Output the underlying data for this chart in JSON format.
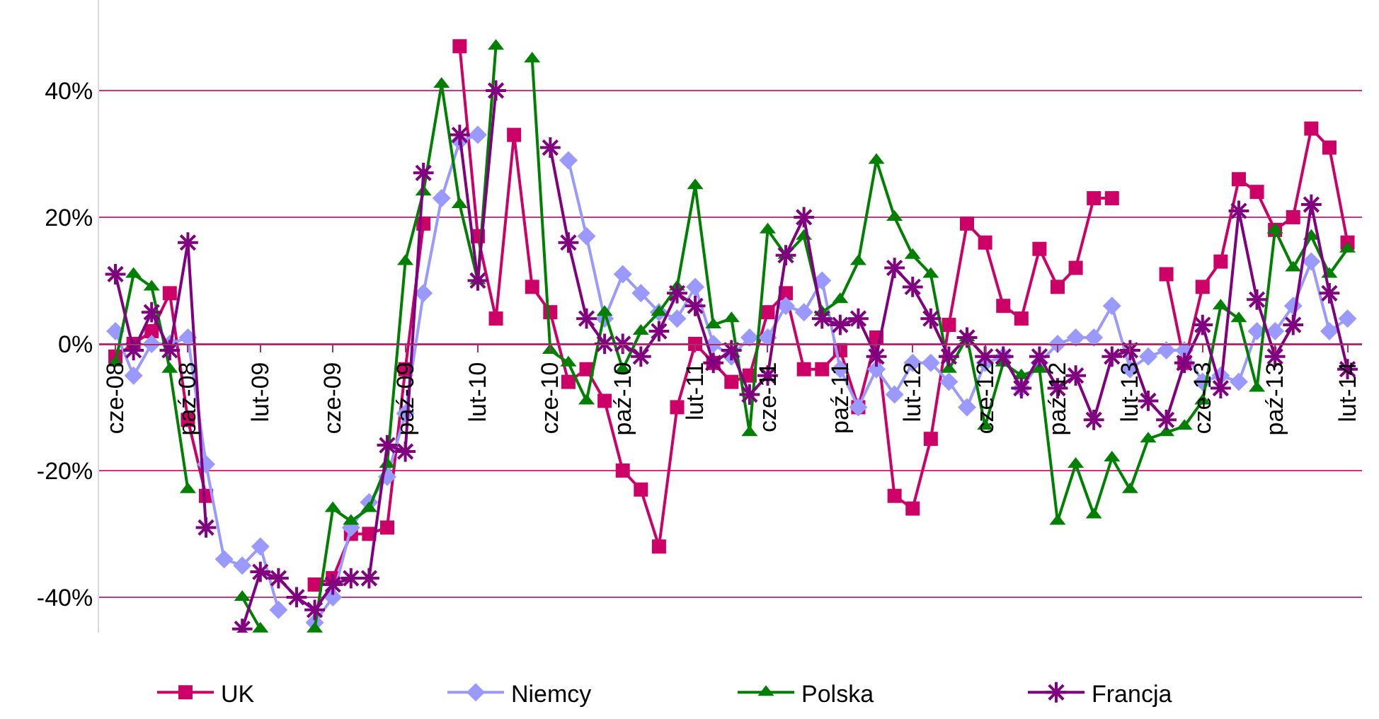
{
  "chart_data": {
    "type": "line",
    "categories": [
      "cze-08",
      null,
      null,
      null,
      "paź-08",
      null,
      null,
      null,
      "lut-09",
      null,
      null,
      null,
      "cze-09",
      null,
      null,
      null,
      "paź-09",
      null,
      null,
      null,
      "lut-10",
      null,
      null,
      null,
      "cze-10",
      null,
      null,
      null,
      "paź-10",
      null,
      null,
      null,
      "lut-11",
      null,
      null,
      null,
      "cze-11",
      null,
      null,
      null,
      "paź-11",
      null,
      null,
      null,
      "lut-12",
      null,
      null,
      null,
      "cze-12",
      null,
      null,
      null,
      "paź-12",
      null,
      null,
      null,
      "lut-13",
      null,
      null,
      null,
      "cze-13",
      null,
      null,
      null,
      "paź-13",
      null,
      null,
      null,
      "lut-14"
    ],
    "series": [
      {
        "name": "UK",
        "color": "#cc0066",
        "marker": "square",
        "values": [
          -2,
          0,
          2,
          8,
          -12,
          -24,
          null,
          null,
          null,
          null,
          null,
          -38,
          -37,
          -30,
          -30,
          -29,
          -4,
          19,
          null,
          47,
          17,
          4,
          33,
          9,
          5,
          -6,
          -4,
          -9,
          -20,
          -23,
          -32,
          -10,
          0,
          -3,
          -6,
          -5,
          5,
          8,
          -4,
          -4,
          -1,
          -10,
          1,
          -24,
          -26,
          -15,
          3,
          19,
          16,
          6,
          4,
          15,
          9,
          12,
          23,
          23,
          null,
          null,
          11,
          -3,
          9,
          13,
          26,
          24,
          18,
          20,
          34,
          31,
          16
        ]
      },
      {
        "name": "Niemcy",
        "color": "#9999ff",
        "marker": "diamond",
        "values": [
          2,
          -5,
          0,
          0,
          1,
          -19,
          -34,
          -35,
          -32,
          -42,
          null,
          -44,
          -40,
          -29,
          -25,
          -21,
          -11,
          8,
          23,
          32,
          33,
          null,
          null,
          null,
          null,
          29,
          17,
          4,
          11,
          8,
          5,
          4,
          9,
          0,
          -2,
          1,
          1,
          6,
          5,
          10,
          -4,
          -10,
          -4,
          -8,
          -3,
          -3,
          -6,
          -10,
          -3,
          -2,
          -7,
          -3,
          0,
          1,
          1,
          6,
          -4,
          -2,
          -1,
          -1,
          -6,
          -5,
          -6,
          2,
          2,
          6,
          13,
          2,
          4
        ]
      },
      {
        "name": "Polska",
        "color": "#008000",
        "marker": "triangle",
        "values": [
          -3,
          11,
          9,
          -4,
          -23,
          null,
          null,
          -40,
          -45,
          null,
          null,
          -45,
          -26,
          -28,
          -26,
          -19,
          13,
          24,
          41,
          22,
          10,
          47,
          null,
          45,
          -1,
          -3,
          -9,
          5,
          -4,
          2,
          5,
          9,
          25,
          3,
          4,
          -14,
          18,
          14,
          17,
          5,
          7,
          13,
          29,
          20,
          14,
          11,
          -4,
          1,
          -13,
          -3,
          -5,
          -4,
          -28,
          -19,
          -27,
          -18,
          -23,
          -15,
          -14,
          -13,
          -9,
          6,
          4,
          -7,
          18,
          12,
          17,
          11,
          15
        ]
      },
      {
        "name": "Francja",
        "color": "#800080",
        "marker": "cross",
        "values": [
          11,
          -1,
          5,
          -1,
          16,
          -29,
          null,
          -45,
          -36,
          -37,
          -40,
          -42,
          -38,
          -37,
          -37,
          -16,
          -17,
          27,
          null,
          33,
          10,
          40,
          null,
          null,
          31,
          16,
          4,
          0,
          0,
          -2,
          2,
          8,
          6,
          -3,
          -1,
          -8,
          -5,
          14,
          20,
          4,
          3,
          4,
          -2,
          12,
          9,
          4,
          -2,
          1,
          -2,
          -2,
          -7,
          -2,
          -7,
          -5,
          -12,
          -2,
          -1,
          -9,
          -12,
          -3,
          3,
          -7,
          21,
          7,
          -2,
          3,
          22,
          8,
          -4
        ]
      }
    ],
    "ylim": [
      -45.6,
      54.3
    ],
    "yticks": [
      {
        "value": -40,
        "label": "-40%"
      },
      {
        "value": -20,
        "label": "-20%"
      },
      {
        "value": 0,
        "label": "0%"
      },
      {
        "value": 20,
        "label": "20%"
      },
      {
        "value": 40,
        "label": "40%"
      }
    ],
    "grid": "y",
    "legend": "bottom",
    "line_style": "solid"
  }
}
